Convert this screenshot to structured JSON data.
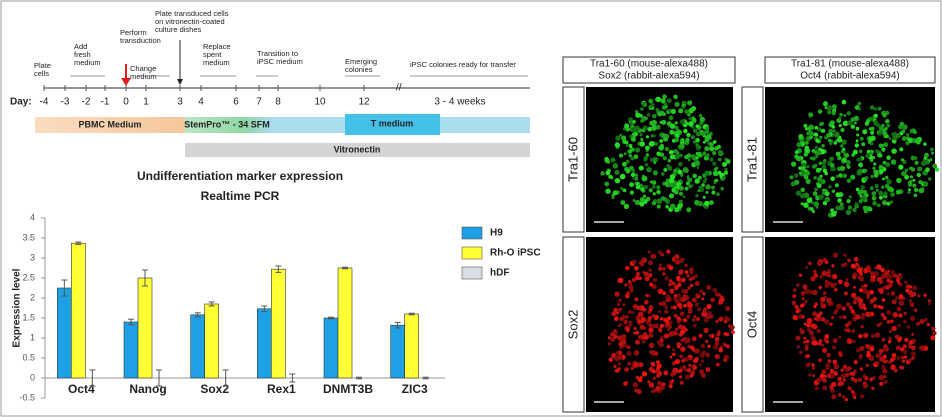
{
  "timeline": {
    "day_label": "Day:",
    "days": [
      "-4",
      "-3",
      "-2",
      "-1",
      "0",
      "1",
      "3",
      "4",
      "6",
      "7",
      "8",
      "10",
      "12",
      "3 - 4 weeks"
    ],
    "annotations": [
      [
        "Plate",
        "cells"
      ],
      [
        "Add",
        "fresh",
        "medium"
      ],
      [
        "Perform",
        "transduction"
      ],
      [
        "Change",
        "medium"
      ],
      [
        "Plate transduced cells",
        "on vitronectin-coated",
        "culture dishes"
      ],
      [
        "Replace",
        "spent",
        "medium"
      ],
      [
        "Transition to",
        "iPSC medium"
      ],
      [
        "Emerging",
        "colonies"
      ],
      [
        "iPSC colonies ready for transfer"
      ]
    ],
    "bands": [
      "PBMC Medium",
      "StemPro™ - 34 SFM",
      "T medium",
      "Vitronectin"
    ]
  },
  "chart_data": {
    "type": "bar",
    "title": "Undifferentiation marker expression",
    "subtitle": "Realtime PCR",
    "y_label": "Expression level",
    "categories": [
      "Oct4",
      "Nanog",
      "Sox2",
      "Rex1",
      "DNMT3B",
      "ZIC3"
    ],
    "series": [
      {
        "name": "H9",
        "color": "#1ea0e6",
        "values": [
          2.25,
          1.4,
          1.58,
          1.73,
          1.5,
          1.32
        ],
        "errors": [
          0.2,
          0.07,
          0.05,
          0.07,
          0.02,
          0.07
        ]
      },
      {
        "name": "Rh-O iPSC",
        "color": "#ffff33",
        "values": [
          3.37,
          2.5,
          1.85,
          2.72,
          2.75,
          1.6
        ],
        "errors": [
          0.03,
          0.2,
          0.05,
          0.08,
          0.02,
          0.02
        ]
      },
      {
        "name": "hDF",
        "color": "#d9dde6",
        "values": [
          0,
          0,
          0,
          0,
          0,
          0
        ],
        "errors": [
          0.2,
          0.2,
          0.2,
          0.1,
          0.02,
          0.02
        ]
      }
    ],
    "ylim": [
      -0.5,
      4
    ],
    "yticks": [
      -0.5,
      0,
      0.5,
      1,
      1.5,
      2,
      2.5,
      3,
      3.5,
      4
    ],
    "grid": false
  },
  "panels": [
    {
      "header": [
        "Tra1-60 (mouse-alexa488)",
        "Sox2 (rabbit-alexa594)"
      ],
      "rows": [
        "Tra1-60",
        "Sox2"
      ]
    },
    {
      "header": [
        "Tra1-81 (mouse-alexa488)",
        "Oct4 (rabbit-alexa594)"
      ],
      "rows": [
        "Tra1-81",
        "Oct4"
      ]
    }
  ]
}
